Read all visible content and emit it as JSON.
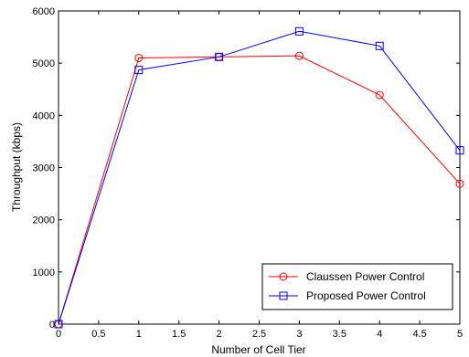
{
  "chart_data": {
    "type": "line",
    "title": "",
    "xlabel": "Number of Cell Tier",
    "ylabel": "Throughput (kbps)",
    "xlim": [
      0,
      5
    ],
    "ylim": [
      0,
      6000
    ],
    "x_ticks": [
      "0",
      "0.5",
      "1",
      "1.5",
      "2",
      "2.5",
      "3",
      "3.5",
      "4",
      "4.5",
      "5"
    ],
    "y_ticks": [
      "0",
      "1000",
      "2000",
      "3000",
      "4000",
      "5000",
      "6000"
    ],
    "grid": false,
    "legend_position": "bottom-right",
    "series": [
      {
        "name": "Claussen Power Control",
        "color": "#ff0000",
        "marker": "circle",
        "x": [
          0,
          1,
          2,
          3,
          4,
          5
        ],
        "y": [
          0,
          5100,
          5120,
          5140,
          4390,
          2690
        ]
      },
      {
        "name": "Proposed Power Control",
        "color": "#0000ff",
        "marker": "square",
        "x": [
          0,
          1,
          2,
          3,
          4,
          5
        ],
        "y": [
          0,
          4870,
          5120,
          5610,
          5330,
          3330
        ]
      }
    ]
  }
}
